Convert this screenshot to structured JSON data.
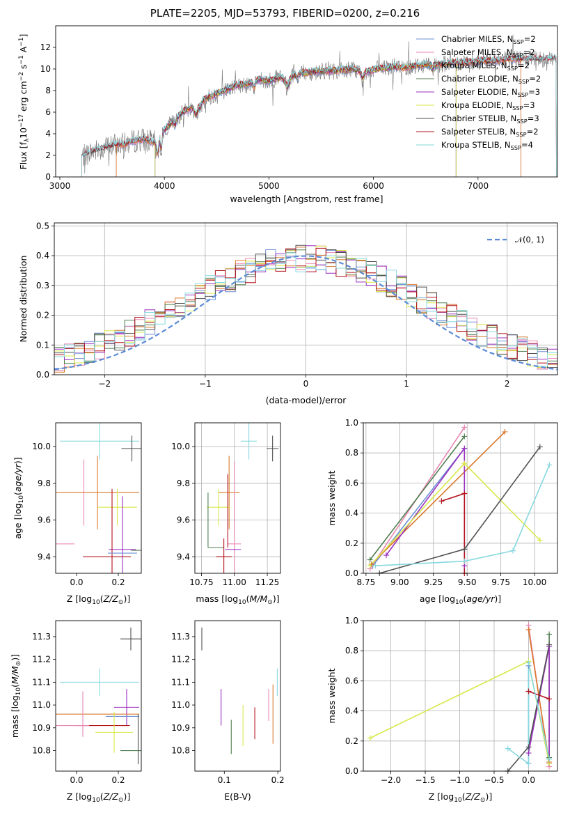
{
  "title": "PLATE=2205, MJD=53793, FIBERID=0200, z=0.216",
  "colors": {
    "Chabrier MILES": "#6b8fd6",
    "Salpeter MILES": "#e887b4",
    "Kroupa MILES": "#d9782a",
    "Chabrier ELODIE": "#4f7d4f",
    "Salpeter ELODIE": "#9b2fbf",
    "Kroupa ELODIE": "#d8e84a",
    "Chabrier STELIB": "#505050",
    "Salpeter STELIB": "#b3121c",
    "Kroupa STELIB": "#86d8df",
    "normal_curve": "#5b8ad6",
    "grid": "#b0b0b0"
  },
  "chart_data": [
    {
      "id": "spectrum",
      "type": "line",
      "xlabel": "wavelength [Angstrom, rest frame]",
      "ylabel": "Flux [f_λ10^-17 erg cm^-2 s^-1 A^-1]",
      "xlim": [
        2960,
        7760
      ],
      "ylim": [
        0,
        14
      ],
      "xticks": [
        3000,
        4000,
        5000,
        6000,
        7000
      ],
      "yticks": [
        0,
        2,
        4,
        6,
        8,
        10,
        12
      ],
      "grid": false,
      "legend_position": "lower-right",
      "legend": [
        {
          "label": "Chabrier MILES, N",
          "sub": "SSP",
          "suffix": "=2",
          "color_key": "Chabrier MILES"
        },
        {
          "label": "Salpeter MILES, N",
          "sub": "SSP",
          "suffix": "=2",
          "color_key": "Salpeter MILES"
        },
        {
          "label": "Kroupa MILES, N",
          "sub": "SSP",
          "suffix": "=2",
          "color_key": "Kroupa MILES"
        },
        {
          "label": "Chabrier ELODIE, N",
          "sub": "SSP",
          "suffix": "=2",
          "color_key": "Chabrier ELODIE"
        },
        {
          "label": "Salpeter ELODIE, N",
          "sub": "SSP",
          "suffix": "=3",
          "color_key": "Salpeter ELODIE"
        },
        {
          "label": "Kroupa ELODIE, N",
          "sub": "SSP",
          "suffix": "=3",
          "color_key": "Kroupa ELODIE"
        },
        {
          "label": "Chabrier STELIB, N",
          "sub": "SSP",
          "suffix": "=3",
          "color_key": "Chabrier STELIB"
        },
        {
          "label": "Salpeter STELIB, N",
          "sub": "SSP",
          "suffix": "=2",
          "color_key": "Salpeter STELIB"
        },
        {
          "label": "Kroupa STELIB, N",
          "sub": "SSP",
          "suffix": "=4",
          "color_key": "Kroupa STELIB"
        }
      ],
      "continuum": [
        [
          3200,
          1.8
        ],
        [
          3300,
          2.3
        ],
        [
          3400,
          2.6
        ],
        [
          3500,
          2.9
        ],
        [
          3600,
          3.0
        ],
        [
          3700,
          3.3
        ],
        [
          3800,
          3.5
        ],
        [
          3900,
          3.2
        ],
        [
          3950,
          3.8
        ],
        [
          4000,
          4.4
        ],
        [
          4100,
          5.3
        ],
        [
          4200,
          6.2
        ],
        [
          4300,
          6.5
        ],
        [
          4400,
          7.3
        ],
        [
          4500,
          7.7
        ],
        [
          4600,
          8.1
        ],
        [
          4700,
          8.5
        ],
        [
          4800,
          8.6
        ],
        [
          4900,
          9.0
        ],
        [
          5000,
          8.9
        ],
        [
          5100,
          9.2
        ],
        [
          5200,
          9.3
        ],
        [
          5300,
          9.6
        ],
        [
          5400,
          9.7
        ],
        [
          5500,
          9.8
        ],
        [
          5600,
          9.8
        ],
        [
          5700,
          9.9
        ],
        [
          5800,
          10.0
        ],
        [
          5900,
          9.7
        ],
        [
          6000,
          9.9
        ],
        [
          6100,
          10.1
        ],
        [
          6200,
          10.2
        ],
        [
          6300,
          10.1
        ],
        [
          6400,
          10.3
        ],
        [
          6500,
          10.4
        ],
        [
          6600,
          10.4
        ],
        [
          6700,
          10.5
        ],
        [
          6800,
          10.6
        ],
        [
          6900,
          10.6
        ],
        [
          7000,
          10.7
        ],
        [
          7100,
          10.8
        ],
        [
          7200,
          10.8
        ],
        [
          7300,
          10.9
        ],
        [
          7400,
          10.9
        ]
      ],
      "model_start": {
        "Chabrier MILES": 3540,
        "Salpeter MILES": 3540,
        "Kroupa MILES": 3540,
        "Chabrier ELODIE": 3910,
        "Salpeter ELODIE": 3910,
        "Kroupa ELODIE": 3910,
        "Chabrier STELIB": 3210,
        "Salpeter STELIB": 3210,
        "Kroupa STELIB": 3210
      },
      "model_end": {
        "Chabrier MILES": 7410,
        "Salpeter MILES": 7410,
        "Kroupa MILES": 7410,
        "Chabrier ELODIE": 6790,
        "Salpeter ELODIE": 6790,
        "Kroupa ELODIE": 6790,
        "Chabrier STELIB": 7750,
        "Salpeter STELIB": 7750,
        "Kroupa STELIB": 7750
      }
    },
    {
      "id": "residuals",
      "type": "step",
      "xlabel": "(data-model)/error",
      "ylabel": "Normed distribution",
      "xlim": [
        -2.5,
        2.5
      ],
      "ylim": [
        0,
        0.51
      ],
      "xticks": [
        -2,
        -1,
        0,
        1,
        2
      ],
      "yticks": [
        0.0,
        0.1,
        0.2,
        0.3,
        0.4,
        0.5
      ],
      "grid": true,
      "legend_position": "upper-right",
      "normal_label": "𝒩(0, 1)",
      "bin_edges_range": [
        -2.5,
        2.5
      ],
      "n_bins": 50
    },
    {
      "id": "z-age",
      "type": "errorbar",
      "xlabel": "Z [log10(Z/Z⊙)]",
      "ylabel": "age [log10(age/yr)]",
      "xlim": [
        -0.1,
        0.31
      ],
      "ylim": [
        9.31,
        10.13
      ],
      "xticks": [
        0.0,
        0.2
      ],
      "yticks": [
        9.4,
        9.6,
        9.8,
        10.0
      ],
      "grid": false
    },
    {
      "id": "mass-age",
      "type": "errorbar",
      "xlabel": "mass [log10(M/M⊙)]",
      "ylabel": "",
      "xlim": [
        10.7,
        11.35
      ],
      "ylim": [
        9.31,
        10.13
      ],
      "xticks": [
        10.75,
        11.0,
        11.25
      ],
      "yticks": [
        9.4,
        9.6,
        9.8,
        10.0
      ],
      "grid": true
    },
    {
      "id": "age-weight",
      "type": "line",
      "xlabel": "age [log10(age/yr)]",
      "ylabel": "mass weight",
      "xlim": [
        8.73,
        10.17
      ],
      "ylim": [
        0,
        1
      ],
      "xticks": [
        8.75,
        9.0,
        9.25,
        9.5,
        9.75,
        10.0
      ],
      "yticks": [
        0.0,
        0.2,
        0.4,
        0.6,
        0.8,
        1.0
      ],
      "grid": true,
      "series": [
        {
          "color_key": "Chabrier MILES",
          "x": [
            8.8,
            9.48
          ],
          "y": [
            0.05,
            0.83
          ]
        },
        {
          "color_key": "Salpeter MILES",
          "x": [
            8.78,
            9.48
          ],
          "y": [
            0.03,
            0.97
          ]
        },
        {
          "color_key": "Kroupa MILES",
          "x": [
            8.79,
            9.78
          ],
          "y": [
            0.06,
            0.94
          ]
        },
        {
          "color_key": "Chabrier ELODIE",
          "x": [
            8.78,
            9.48
          ],
          "y": [
            0.09,
            0.91
          ]
        },
        {
          "color_key": "Salpeter ELODIE",
          "x": [
            8.9,
            9.48,
            9.48
          ],
          "y": [
            0.12,
            0.83,
            0.05
          ]
        },
        {
          "color_key": "Kroupa ELODIE",
          "x": [
            8.78,
            9.48,
            10.04
          ],
          "y": [
            0.05,
            0.73,
            0.22
          ]
        },
        {
          "color_key": "Chabrier STELIB",
          "x": [
            8.85,
            9.48,
            10.04
          ],
          "y": [
            0.0,
            0.16,
            0.84
          ]
        },
        {
          "color_key": "Salpeter STELIB",
          "x": [
            9.31,
            9.48,
            9.48
          ],
          "y": [
            0.48,
            0.53,
            0.0
          ]
        },
        {
          "color_key": "Kroupa STELIB",
          "x": [
            8.82,
            9.48,
            9.84,
            10.11
          ],
          "y": [
            0.05,
            0.08,
            0.15,
            0.72
          ]
        }
      ]
    },
    {
      "id": "z-mass",
      "type": "errorbar",
      "xlabel": "Z [log10(Z/Z⊙)]",
      "ylabel": "mass [log10(M/M⊙)]",
      "xlim": [
        -0.1,
        0.31
      ],
      "ylim": [
        10.71,
        11.37
      ],
      "xticks": [
        0.0,
        0.2
      ],
      "yticks": [
        10.8,
        10.9,
        11.0,
        11.1,
        11.2,
        11.3
      ],
      "grid": false
    },
    {
      "id": "ebv-mass",
      "type": "errorbar",
      "xlabel": "E(B-V)",
      "ylabel": "",
      "xlim": [
        0.045,
        0.205
      ],
      "ylim": [
        10.71,
        11.37
      ],
      "xticks": [
        0.1,
        0.2
      ],
      "yticks": [
        10.8,
        10.9,
        11.0,
        11.1,
        11.2,
        11.3
      ],
      "grid": false,
      "points": [
        {
          "color_key": "Chabrier STELIB",
          "x": 0.058,
          "y": 11.29,
          "yerr": 0.05
        },
        {
          "color_key": "Salpeter ELODIE",
          "x": 0.094,
          "y": 10.99,
          "yerr": 0.08
        },
        {
          "color_key": "Chabrier ELODIE",
          "x": 0.113,
          "y": 10.86,
          "yerr": 0.075
        },
        {
          "color_key": "Kroupa ELODIE",
          "x": 0.135,
          "y": 10.91,
          "yerr": 0.09
        },
        {
          "color_key": "Salpeter STELIB",
          "x": 0.157,
          "y": 10.92,
          "yerr": 0.07
        },
        {
          "color_key": "Salpeter MILES",
          "x": 0.183,
          "y": 11.0,
          "yerr": 0.07
        },
        {
          "color_key": "Kroupa MILES",
          "x": 0.191,
          "y": 10.96,
          "yerr": 0.13
        },
        {
          "color_key": "Kroupa STELIB",
          "x": 0.199,
          "y": 11.1,
          "yerr": 0.06
        }
      ]
    },
    {
      "id": "z-weight",
      "type": "line",
      "xlabel": "Z [log10(Z/Z⊙)]",
      "ylabel": "mass weight",
      "xlim": [
        -2.4,
        0.42
      ],
      "ylim": [
        0,
        1
      ],
      "xticks": [
        -2.0,
        -1.5,
        -1.0,
        -0.5,
        0.0
      ],
      "yticks": [
        0.0,
        0.2,
        0.4,
        0.6,
        0.8,
        1.0
      ],
      "grid": true,
      "series": [
        {
          "color_key": "Chabrier MILES",
          "x": [
            0.0,
            0.0
          ],
          "y": [
            0.05,
            0.7
          ]
        },
        {
          "color_key": "Salpeter MILES",
          "x": [
            0.3,
            0.0
          ],
          "y": [
            0.03,
            0.97
          ]
        },
        {
          "color_key": "Kroupa MILES",
          "x": [
            0.3,
            0.0
          ],
          "y": [
            0.06,
            0.94
          ]
        },
        {
          "color_key": "Chabrier ELODIE",
          "x": [
            0.3,
            0.3
          ],
          "y": [
            0.09,
            0.91
          ]
        },
        {
          "color_key": "Salpeter ELODIE",
          "x": [
            0.0,
            0.3,
            0.3
          ],
          "y": [
            0.12,
            0.83,
            0.05
          ]
        },
        {
          "color_key": "Kroupa ELODIE",
          "x": [
            -2.3,
            0.0,
            0.3
          ],
          "y": [
            0.22,
            0.73,
            0.05
          ]
        },
        {
          "color_key": "Chabrier STELIB",
          "x": [
            -0.3,
            0.0,
            0.3
          ],
          "y": [
            0.0,
            0.16,
            0.84
          ]
        },
        {
          "color_key": "Salpeter STELIB",
          "x": [
            0.0,
            0.3
          ],
          "y": [
            0.53,
            0.48
          ]
        },
        {
          "color_key": "Kroupa STELIB",
          "x": [
            -0.3,
            0.0,
            0.0,
            0.3
          ],
          "y": [
            0.15,
            0.05,
            0.72,
            0.08
          ]
        }
      ]
    }
  ],
  "points_z_age": [
    {
      "color_key": "Kroupa STELIB",
      "x": 0.11,
      "y": 10.03,
      "xerr": 0.19,
      "yerr": 0.1
    },
    {
      "color_key": "Chabrier STELIB",
      "x": 0.265,
      "y": 9.99,
      "xerr": 0.05,
      "yerr": 0.07
    },
    {
      "color_key": "Salpeter MILES",
      "x": 0.035,
      "y": 9.75,
      "xerr": 0.0,
      "yerr": 0.18
    },
    {
      "color_key": "Kroupa MILES",
      "x": 0.1,
      "y": 9.75,
      "xerr": 0.2,
      "yerr": 0.2
    },
    {
      "color_key": "Kroupa ELODIE",
      "x": 0.195,
      "y": 9.67,
      "xerr": 0.095,
      "yerr": 0.1
    },
    {
      "color_key": "Salpeter MILES",
      "x": -0.06,
      "y": 9.47,
      "xerr": 0.05,
      "yerr": 0.0
    },
    {
      "color_key": "Salpeter ELODIE",
      "x": 0.22,
      "y": 9.44,
      "xerr": 0.065,
      "yerr": 0.29
    },
    {
      "color_key": "Chabrier ELODIE",
      "x": 0.285,
      "y": 9.435,
      "xerr": 0.025,
      "yerr": 0.0
    },
    {
      "color_key": "Salpeter STELIB",
      "x": 0.145,
      "y": 9.4,
      "xerr": 0.115,
      "yerr": 0.0
    },
    {
      "color_key": "Salpeter STELIB",
      "x": 0.17,
      "y": 9.5,
      "xerr": 0.0,
      "yerr": 0.27
    },
    {
      "color_key": "Chabrier MILES",
      "x": 0.22,
      "y": 9.42,
      "xerr": 0.07,
      "yerr": 0.0
    }
  ],
  "points_mass_age": [
    {
      "color_key": "Kroupa STELIB",
      "x": 11.11,
      "y": 10.03,
      "xerr": 0.06,
      "yerr": 0.1
    },
    {
      "color_key": "Chabrier STELIB",
      "x": 11.29,
      "y": 9.99,
      "xerr": 0.045,
      "yerr": 0.07
    },
    {
      "color_key": "Kroupa MILES",
      "x": 10.96,
      "y": 9.75,
      "xerr": 0.08,
      "yerr": 0.2
    },
    {
      "color_key": "Kroupa ELODIE",
      "x": 10.88,
      "y": 9.67,
      "xerr": 0.09,
      "yerr": 0.1
    },
    {
      "color_key": "Chabrier ELODIE",
      "x": 10.8,
      "y": 9.6,
      "xerr": 0.0,
      "yerr": 0.15
    },
    {
      "color_key": "Salpeter MILES",
      "x": 11.0,
      "y": 9.47,
      "xerr": 0.05,
      "yerr": 0.45
    },
    {
      "color_key": "Salpeter ELODIE",
      "x": 10.99,
      "y": 9.44,
      "xerr": 0.06,
      "yerr": 0.0
    },
    {
      "color_key": "Chabrier ELODIE",
      "x": 10.86,
      "y": 9.45,
      "xerr": 0.06,
      "yerr": 0.0
    },
    {
      "color_key": "Salpeter STELIB",
      "x": 10.92,
      "y": 9.4,
      "xerr": 0.06,
      "yerr": 0.1
    },
    {
      "color_key": "Salpeter STELIB",
      "x": 10.95,
      "y": 9.65,
      "xerr": 0.0,
      "yerr": 0.2
    }
  ],
  "points_z_mass": [
    {
      "color_key": "Chabrier STELIB",
      "x": 0.26,
      "y": 11.29,
      "xerr": 0.05,
      "yerr": 0.05
    },
    {
      "color_key": "Kroupa STELIB",
      "x": 0.11,
      "y": 11.1,
      "xerr": 0.19,
      "yerr": 0.06
    },
    {
      "color_key": "Salpeter ELODIE",
      "x": 0.24,
      "y": 10.99,
      "xerr": 0.06,
      "yerr": 0.08
    },
    {
      "color_key": "Kroupa MILES",
      "x": 0.1,
      "y": 10.96,
      "xerr": 0.2,
      "yerr": 0.0
    },
    {
      "color_key": "Salpeter MILES",
      "x": 0.03,
      "y": 10.96,
      "xerr": 0.0,
      "yerr": 0.1
    },
    {
      "color_key": "Chabrier MILES",
      "x": 0.22,
      "y": 10.95,
      "xerr": 0.08,
      "yerr": 0.0
    },
    {
      "color_key": "Salpeter STELIB",
      "x": 0.125,
      "y": 10.91,
      "xerr": 0.13,
      "yerr": 0.0
    },
    {
      "color_key": "Salpeter MILES",
      "x": -0.02,
      "y": 10.91,
      "xerr": 0.08,
      "yerr": 0.0
    },
    {
      "color_key": "Kroupa ELODIE",
      "x": 0.18,
      "y": 10.88,
      "xerr": 0.09,
      "yerr": 0.09
    },
    {
      "color_key": "Chabrier ELODIE",
      "x": 0.26,
      "y": 10.8,
      "xerr": 0.05,
      "yerr": 0.0
    },
    {
      "color_key": "Chabrier STELIB",
      "x": 0.295,
      "y": 10.85,
      "xerr": 0.0,
      "yerr": 0.11
    }
  ]
}
